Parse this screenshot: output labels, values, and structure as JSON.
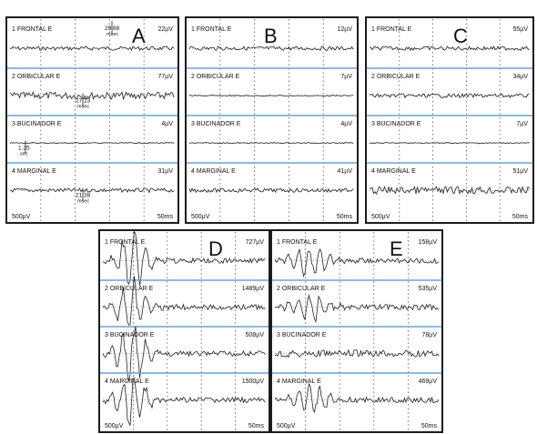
{
  "figure": {
    "scale_left": "500µV",
    "scale_right": "50ms",
    "panels": [
      {
        "letter": "A",
        "channels": [
          {
            "label": "1  FRONTAL E",
            "amp": "22µV",
            "amp_value": 22,
            "shape": "small"
          },
          {
            "label": "2  ORBICULAR E",
            "amp": "77µV",
            "amp_value": 77,
            "shape": "medium"
          },
          {
            "label": "3  BUCINADOR E",
            "amp": "4µV",
            "amp_value": 4,
            "shape": "flat"
          },
          {
            "label": "4  MARGINAL E",
            "amp": "31µV",
            "amp_value": 31,
            "shape": "small"
          }
        ],
        "annotations": [
          {
            "channel": 0,
            "text": "29.88",
            "sub": "msec"
          },
          {
            "channel": 1,
            "text": "27.13",
            "sub": "msec"
          },
          {
            "channel": 2,
            "text": "1.25",
            "sub": "sec"
          },
          {
            "channel": 3,
            "text": "21.38",
            "sub": "msec"
          }
        ]
      },
      {
        "letter": "B",
        "channels": [
          {
            "label": "1  FRONTAL E",
            "amp": "12µV",
            "amp_value": 12,
            "shape": "small"
          },
          {
            "label": "2  ORBICULAR E",
            "amp": "7µV",
            "amp_value": 7,
            "shape": "flat"
          },
          {
            "label": "3  BUCINADOR E",
            "amp": "4µV",
            "amp_value": 4,
            "shape": "flat"
          },
          {
            "label": "4  MARGINAL E",
            "amp": "41µV",
            "amp_value": 41,
            "shape": "small"
          }
        ],
        "annotations": []
      },
      {
        "letter": "C",
        "channels": [
          {
            "label": "1  FRONTAL E",
            "amp": "55µV",
            "amp_value": 55,
            "shape": "small"
          },
          {
            "label": "2  ORBICULAR E",
            "amp": "34µV",
            "amp_value": 34,
            "shape": "small"
          },
          {
            "label": "3  BUCINADOR E",
            "amp": "7µV",
            "amp_value": 7,
            "shape": "flat"
          },
          {
            "label": "4  MARGINAL E",
            "amp": "51µV",
            "amp_value": 51,
            "shape": "medium"
          }
        ],
        "annotations": []
      },
      {
        "letter": "D",
        "channels": [
          {
            "label": "1  FRONTAL E",
            "amp": "727µV",
            "amp_value": 727,
            "shape": "big"
          },
          {
            "label": "2  ORBICULAR E",
            "amp": "1489µV",
            "amp_value": 1489,
            "shape": "big"
          },
          {
            "label": "3  BUCINADOR E",
            "amp": "508µV",
            "amp_value": 508,
            "shape": "big"
          },
          {
            "label": "4  MARGINAL E",
            "amp": "1500µV",
            "amp_value": 1500,
            "shape": "big"
          }
        ],
        "annotations": []
      },
      {
        "letter": "E",
        "channels": [
          {
            "label": "1  FRONTAL E",
            "amp": "158µV",
            "amp_value": 158,
            "shape": "large"
          },
          {
            "label": "2  ORBICULAR E",
            "amp": "535µV",
            "amp_value": 535,
            "shape": "large"
          },
          {
            "label": "3  BUCINADOR E",
            "amp": "78µV",
            "amp_value": 78,
            "shape": "medium"
          },
          {
            "label": "4  MARGINAL E",
            "amp": "469µV",
            "amp_value": 469,
            "shape": "large"
          }
        ],
        "annotations": []
      }
    ]
  },
  "chart_data": [
    {
      "type": "line",
      "title": "A",
      "series": [
        {
          "name": "1  FRONTAL E",
          "values": [
            22
          ]
        },
        {
          "name": "2  ORBICULAR E",
          "values": [
            77
          ]
        },
        {
          "name": "3  BUCINADOR E",
          "values": [
            4
          ]
        },
        {
          "name": "4  MARGINAL E",
          "values": [
            31
          ]
        }
      ],
      "xlabel": "50ms",
      "ylabel": "500µV",
      "grid": true
    },
    {
      "type": "line",
      "title": "B",
      "series": [
        {
          "name": "1  FRONTAL E",
          "values": [
            12
          ]
        },
        {
          "name": "2  ORBICULAR E",
          "values": [
            7
          ]
        },
        {
          "name": "3  BUCINADOR E",
          "values": [
            4
          ]
        },
        {
          "name": "4  MARGINAL E",
          "values": [
            41
          ]
        }
      ],
      "xlabel": "50ms",
      "ylabel": "500µV",
      "grid": true
    },
    {
      "type": "line",
      "title": "C",
      "series": [
        {
          "name": "1  FRONTAL E",
          "values": [
            55
          ]
        },
        {
          "name": "2  ORBICULAR E",
          "values": [
            34
          ]
        },
        {
          "name": "3  BUCINADOR E",
          "values": [
            7
          ]
        },
        {
          "name": "4  MARGINAL E",
          "values": [
            51
          ]
        }
      ],
      "xlabel": "50ms",
      "ylabel": "500µV",
      "grid": true
    },
    {
      "type": "line",
      "title": "D",
      "series": [
        {
          "name": "1  FRONTAL E",
          "values": [
            727
          ]
        },
        {
          "name": "2  ORBICULAR E",
          "values": [
            1489
          ]
        },
        {
          "name": "3  BUCINADOR E",
          "values": [
            508
          ]
        },
        {
          "name": "4  MARGINAL E",
          "values": [
            1500
          ]
        }
      ],
      "xlabel": "50ms",
      "ylabel": "500µV",
      "grid": true
    },
    {
      "type": "line",
      "title": "E",
      "series": [
        {
          "name": "1  FRONTAL E",
          "values": [
            158
          ]
        },
        {
          "name": "2  ORBICULAR E",
          "values": [
            535
          ]
        },
        {
          "name": "3  BUCINADOR E",
          "values": [
            78
          ]
        },
        {
          "name": "4  MARGINAL E",
          "values": [
            469
          ]
        }
      ],
      "xlabel": "50ms",
      "ylabel": "500µV",
      "grid": true
    }
  ]
}
